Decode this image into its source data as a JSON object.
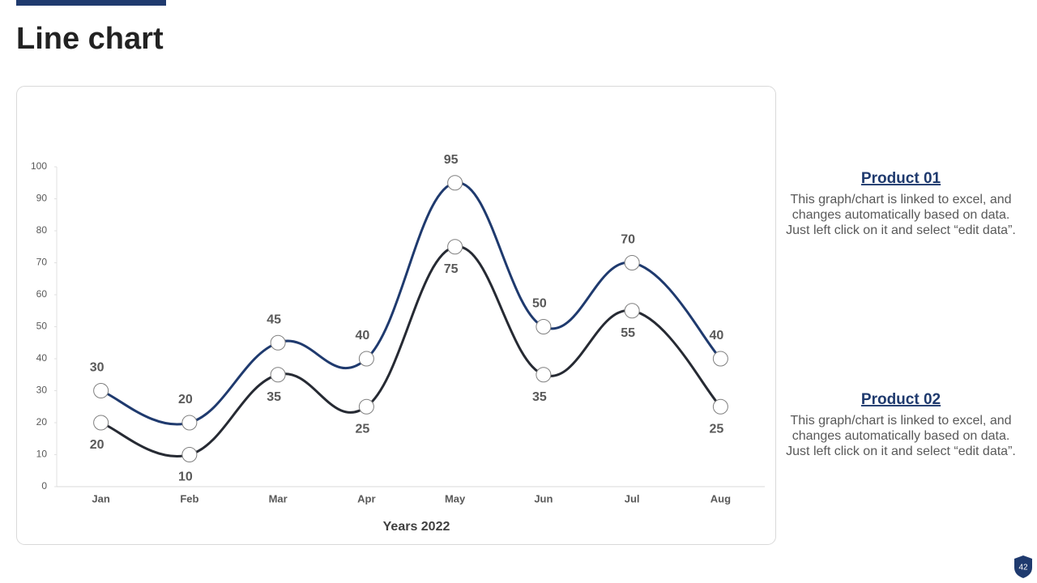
{
  "chart_data": {
    "type": "line",
    "title": "Line chart",
    "x_label": "Years 2022",
    "categories": [
      "Jan",
      "Feb",
      "Mar",
      "Apr",
      "May",
      "Jun",
      "Jul",
      "Aug"
    ],
    "series": [
      {
        "name": "Product 01",
        "color": "#1f3a6e",
        "values": [
          30,
          20,
          45,
          40,
          95,
          50,
          70,
          40
        ],
        "description": [
          "This graph/chart is linked to excel, and",
          "changes automatically based on data.",
          "Just left click on it and select “edit data”."
        ]
      },
      {
        "name": "Product 02",
        "color": "#262a33",
        "values": [
          20,
          10,
          35,
          25,
          75,
          35,
          55,
          25
        ],
        "description": [
          "This graph/chart is linked to excel, and",
          "changes automatically based on data.",
          "Just left click on it and select “edit data”."
        ]
      }
    ],
    "ylim": [
      0,
      100
    ],
    "yticks": [
      0,
      10,
      20,
      30,
      40,
      50,
      60,
      70,
      80,
      90,
      100
    ]
  },
  "page_number": "42"
}
